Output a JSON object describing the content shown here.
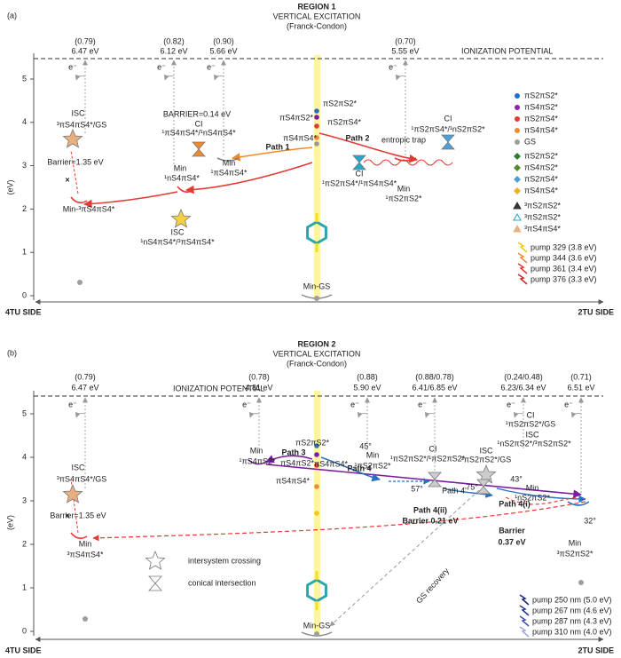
{
  "electron": "e⁻",
  "panels": [
    {
      "label": "(a)",
      "region": "REGION 1",
      "title": "VERTICAL EXCITATION",
      "subtitle": "(Franck-Condon)",
      "axis_label": "(eV)",
      "yticks": [
        "0",
        "1",
        "2",
        "3",
        "4",
        "5"
      ],
      "ionization": "IONIZATION POTENTIAL",
      "left_side": "4TU SIDE",
      "right_side": "2TU SIDE",
      "ip_values": [
        {
          "paren": "(0.79)",
          "ev": "6.47 eV"
        },
        {
          "paren": "(0.82)",
          "ev": "6.12 eV"
        },
        {
          "paren": "(0.90)",
          "ev": "5.66 eV"
        },
        {
          "paren": "(0.70)",
          "ev": "5.55 eV"
        }
      ],
      "texts": [
        "ISC",
        "³πS4πS4*/GS",
        "Barrier=1.35 eV",
        "Min-³πS4πS4*",
        "Min",
        "¹nS4πS4*",
        "ISC",
        "¹nS4πS4*/³πS4πS4*",
        "BARRIER=0.14 eV",
        "CI",
        "¹πS4πS4*/¹nS4πS4*",
        "Min",
        "¹πS4πS4*",
        "Path 1",
        "πS4πS4*",
        "πS2πS2*",
        "πS4πS2*",
        "πS2πS4*",
        "Path 2",
        "CI",
        "¹πS2πS4*/¹πS4πS4*",
        "Min",
        "¹πS2πS2*",
        "CI",
        "¹πS2πS4*/¹nS2πS2*",
        "entropic trap",
        "Min-GS"
      ],
      "legend": [
        {
          "label": "πS2πS2*",
          "shape": "circle",
          "color": "#1f6fd0"
        },
        {
          "label": "πS4πS2*",
          "shape": "circle",
          "color": "#8e24aa"
        },
        {
          "label": "πS2πS4*",
          "shape": "circle",
          "color": "#e53935"
        },
        {
          "label": "πS4πS4*",
          "shape": "circle",
          "color": "#f08a30"
        },
        {
          "label": "GS",
          "shape": "circle",
          "color": "#9e9e9e"
        },
        {
          "label": "πS2πS2*",
          "shape": "diamond",
          "color": "#2e7d32"
        },
        {
          "label": "πS4πS2*",
          "shape": "diamond",
          "color": "#558b2f"
        },
        {
          "label": "πS2πS4*",
          "shape": "diamond",
          "color": "#4d9fd6"
        },
        {
          "label": "πS4πS4*",
          "shape": "diamond",
          "color": "#f0b020"
        },
        {
          "label": "³πS2πS2*",
          "shape": "triangle",
          "color": "#333333"
        },
        {
          "label": "³πS2πS2*",
          "shape": "triangle-open",
          "color": "#26a6c9"
        },
        {
          "label": "³πS4πS4*",
          "shape": "triangle",
          "color": "#e8b080"
        }
      ],
      "pumps": [
        {
          "label": "pump 329 (3.8 eV)",
          "color": "#f5c518"
        },
        {
          "label": "pump 344 (3.6 eV)",
          "color": "#f08a30"
        },
        {
          "label": "pump 361 (3.4 eV)",
          "color": "#e53935"
        },
        {
          "label": "pump 376 (3.3 eV)",
          "color": "#c62828"
        }
      ]
    },
    {
      "label": "(b)",
      "region": "REGION 2",
      "title": "VERTICAL EXCITATION",
      "subtitle": "(Franck-Condon)",
      "axis_label": "(eV)",
      "yticks": [
        "0",
        "1",
        "2",
        "3",
        "4",
        "5"
      ],
      "ionization": "IONIZATION POTENTIAL",
      "left_side": "4TU SIDE",
      "right_side": "2TU SIDE",
      "ip_values": [
        {
          "paren": "(0.79)",
          "ev": "6.47 eV"
        },
        {
          "paren": "(0.78)",
          "ev": "4.81 eV"
        },
        {
          "paren": "(0.88)",
          "ev": "5.90 eV"
        },
        {
          "paren": "(0.88/0.78)",
          "ev": "6.41/6.85 eV"
        },
        {
          "paren": "(0.24/0.48)",
          "ev": "6.23/6.34 eV"
        },
        {
          "paren": "(0.71)",
          "ev": "6.51 eV"
        }
      ],
      "texts": [
        "ISC",
        "³πS4πS4*/GS",
        "Barrier=1.35 eV",
        "Min",
        "³πS4πS4*",
        "Min",
        "¹πS4πS2*",
        "Path 3",
        "πS2πS2*",
        "πS4πS2*",
        "πS4πS4*",
        "πS4πS4*",
        "Path 4",
        "45°",
        "Min",
        "¹πS2πS2*",
        "CI",
        "¹πS2πS2*/¹πS2πS2*",
        "57°",
        "Path 4'",
        "ISC",
        "³πS2πS2*/GS",
        "CI",
        "¹πS2πS2*/GS",
        "ISC",
        "¹nS2πS2*/³πS2πS2*",
        "75°",
        "Min",
        "¹nS2πS2*",
        "43°",
        "32°",
        "Min",
        "³πS2πS2*",
        "Path 4(ii)",
        "Barrier 0.21 eV",
        "Path 4(i)",
        "Barrier",
        "0.37 eV",
        "GS recovery",
        "intersystem crossing",
        "conical intersection",
        "Min-GS"
      ],
      "legend": [],
      "pumps": [
        {
          "label": "pump 250 nm (5.0 eV)",
          "color": "#1a237e"
        },
        {
          "label": "pump 267 nm (4.6 eV)",
          "color": "#283593"
        },
        {
          "label": "pump 287 nm (4.3 eV)",
          "color": "#3f51b5"
        },
        {
          "label": "pump 310 nm (4.0 eV)",
          "color": "#9fa8da"
        }
      ]
    }
  ]
}
